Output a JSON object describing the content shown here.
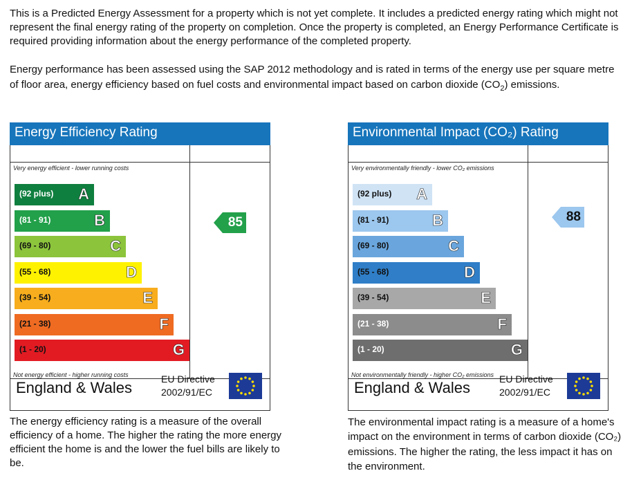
{
  "intro": {
    "paragraph1": "This is a Predicted Energy Assessment for a property which is not yet complete. It includes a predicted energy rating which might not represent the final energy rating of the property on completion. Once the property is completed, an Energy Performance Certificate is required providing information about the energy performance of the completed property.",
    "paragraph2_start": "Energy performance has been assessed using the SAP 2012 methodology and is rated in terms of the energy use per square metre of floor area, energy efficiency based on fuel costs and environmental impact based on carbon dioxide (CO",
    "paragraph2_sub": "2",
    "paragraph2_end": ") emissions."
  },
  "energy": {
    "title": "Energy Efficiency Rating",
    "top_caption": "Very energy efficient - lower running costs",
    "bottom_caption": "Not energy efficient - higher running costs",
    "bands": [
      {
        "range": "(92 plus)",
        "letter": "A",
        "color": "#0f7f3f",
        "range_color": "#ffffff"
      },
      {
        "range": "(81 - 91)",
        "letter": "B",
        "color": "#22a04a",
        "range_color": "#ffffff"
      },
      {
        "range": "(69 - 80)",
        "letter": "C",
        "color": "#8cc43c",
        "range_color": "#111111"
      },
      {
        "range": "(55 - 68)",
        "letter": "D",
        "color": "#fff200",
        "range_color": "#111111"
      },
      {
        "range": "(39 - 54)",
        "letter": "E",
        "color": "#f7ad1d",
        "range_color": "#111111"
      },
      {
        "range": "(21 - 38)",
        "letter": "F",
        "color": "#ef6b22",
        "range_color": "#111111"
      },
      {
        "range": "(1 - 20)",
        "letter": "G",
        "color": "#e21b23",
        "range_color": "#111111"
      }
    ],
    "rating": "85",
    "rating_band": "B",
    "rating_color": "#22a04a",
    "rating_text_color": "#ffffff",
    "country": "England & Wales",
    "directive_line1": "EU Directive",
    "directive_line2": "2002/91/EC",
    "description": "The energy efficiency rating is a measure of the overall efficiency of a home. The higher the rating the more energy efficient the home is and the lower the fuel bills are likely to be."
  },
  "environment": {
    "title": "Environmental Impact (CO₂) Rating",
    "top_caption": "Very environmentally friendly - lower CO₂ emissions",
    "bottom_caption": "Not environmentally friendly - higher CO₂ emissions",
    "bands": [
      {
        "range": "(92 plus)",
        "letter": "A",
        "color": "#cfe3f5",
        "range_color": "#111111"
      },
      {
        "range": "(81 - 91)",
        "letter": "B",
        "color": "#9cc7ee",
        "range_color": "#111111"
      },
      {
        "range": "(69 - 80)",
        "letter": "C",
        "color": "#6aa6dd",
        "range_color": "#111111"
      },
      {
        "range": "(55 - 68)",
        "letter": "D",
        "color": "#2f7ec7",
        "range_color": "#111111"
      },
      {
        "range": "(39 - 54)",
        "letter": "E",
        "color": "#a8a8a8",
        "range_color": "#111111"
      },
      {
        "range": "(21 - 38)",
        "letter": "F",
        "color": "#8c8c8c",
        "range_color": "#ffffff"
      },
      {
        "range": "(1 - 20)",
        "letter": "G",
        "color": "#6e6e6e",
        "range_color": "#ffffff"
      }
    ],
    "rating": "88",
    "rating_band": "B",
    "rating_color": "#9cc7ee",
    "rating_text_color": "#111111",
    "country": "England & Wales",
    "directive_line1": "EU Directive",
    "directive_line2": "2002/91/EC",
    "description": "The environmental impact rating is a measure of a home's impact on the environment in terms of carbon dioxide (CO₂) emissions. The higher the rating, the less impact it has on the environment."
  },
  "icons": {
    "eu_flag": "eu-flag-icon",
    "rating_arrow": "arrow-left-icon"
  }
}
